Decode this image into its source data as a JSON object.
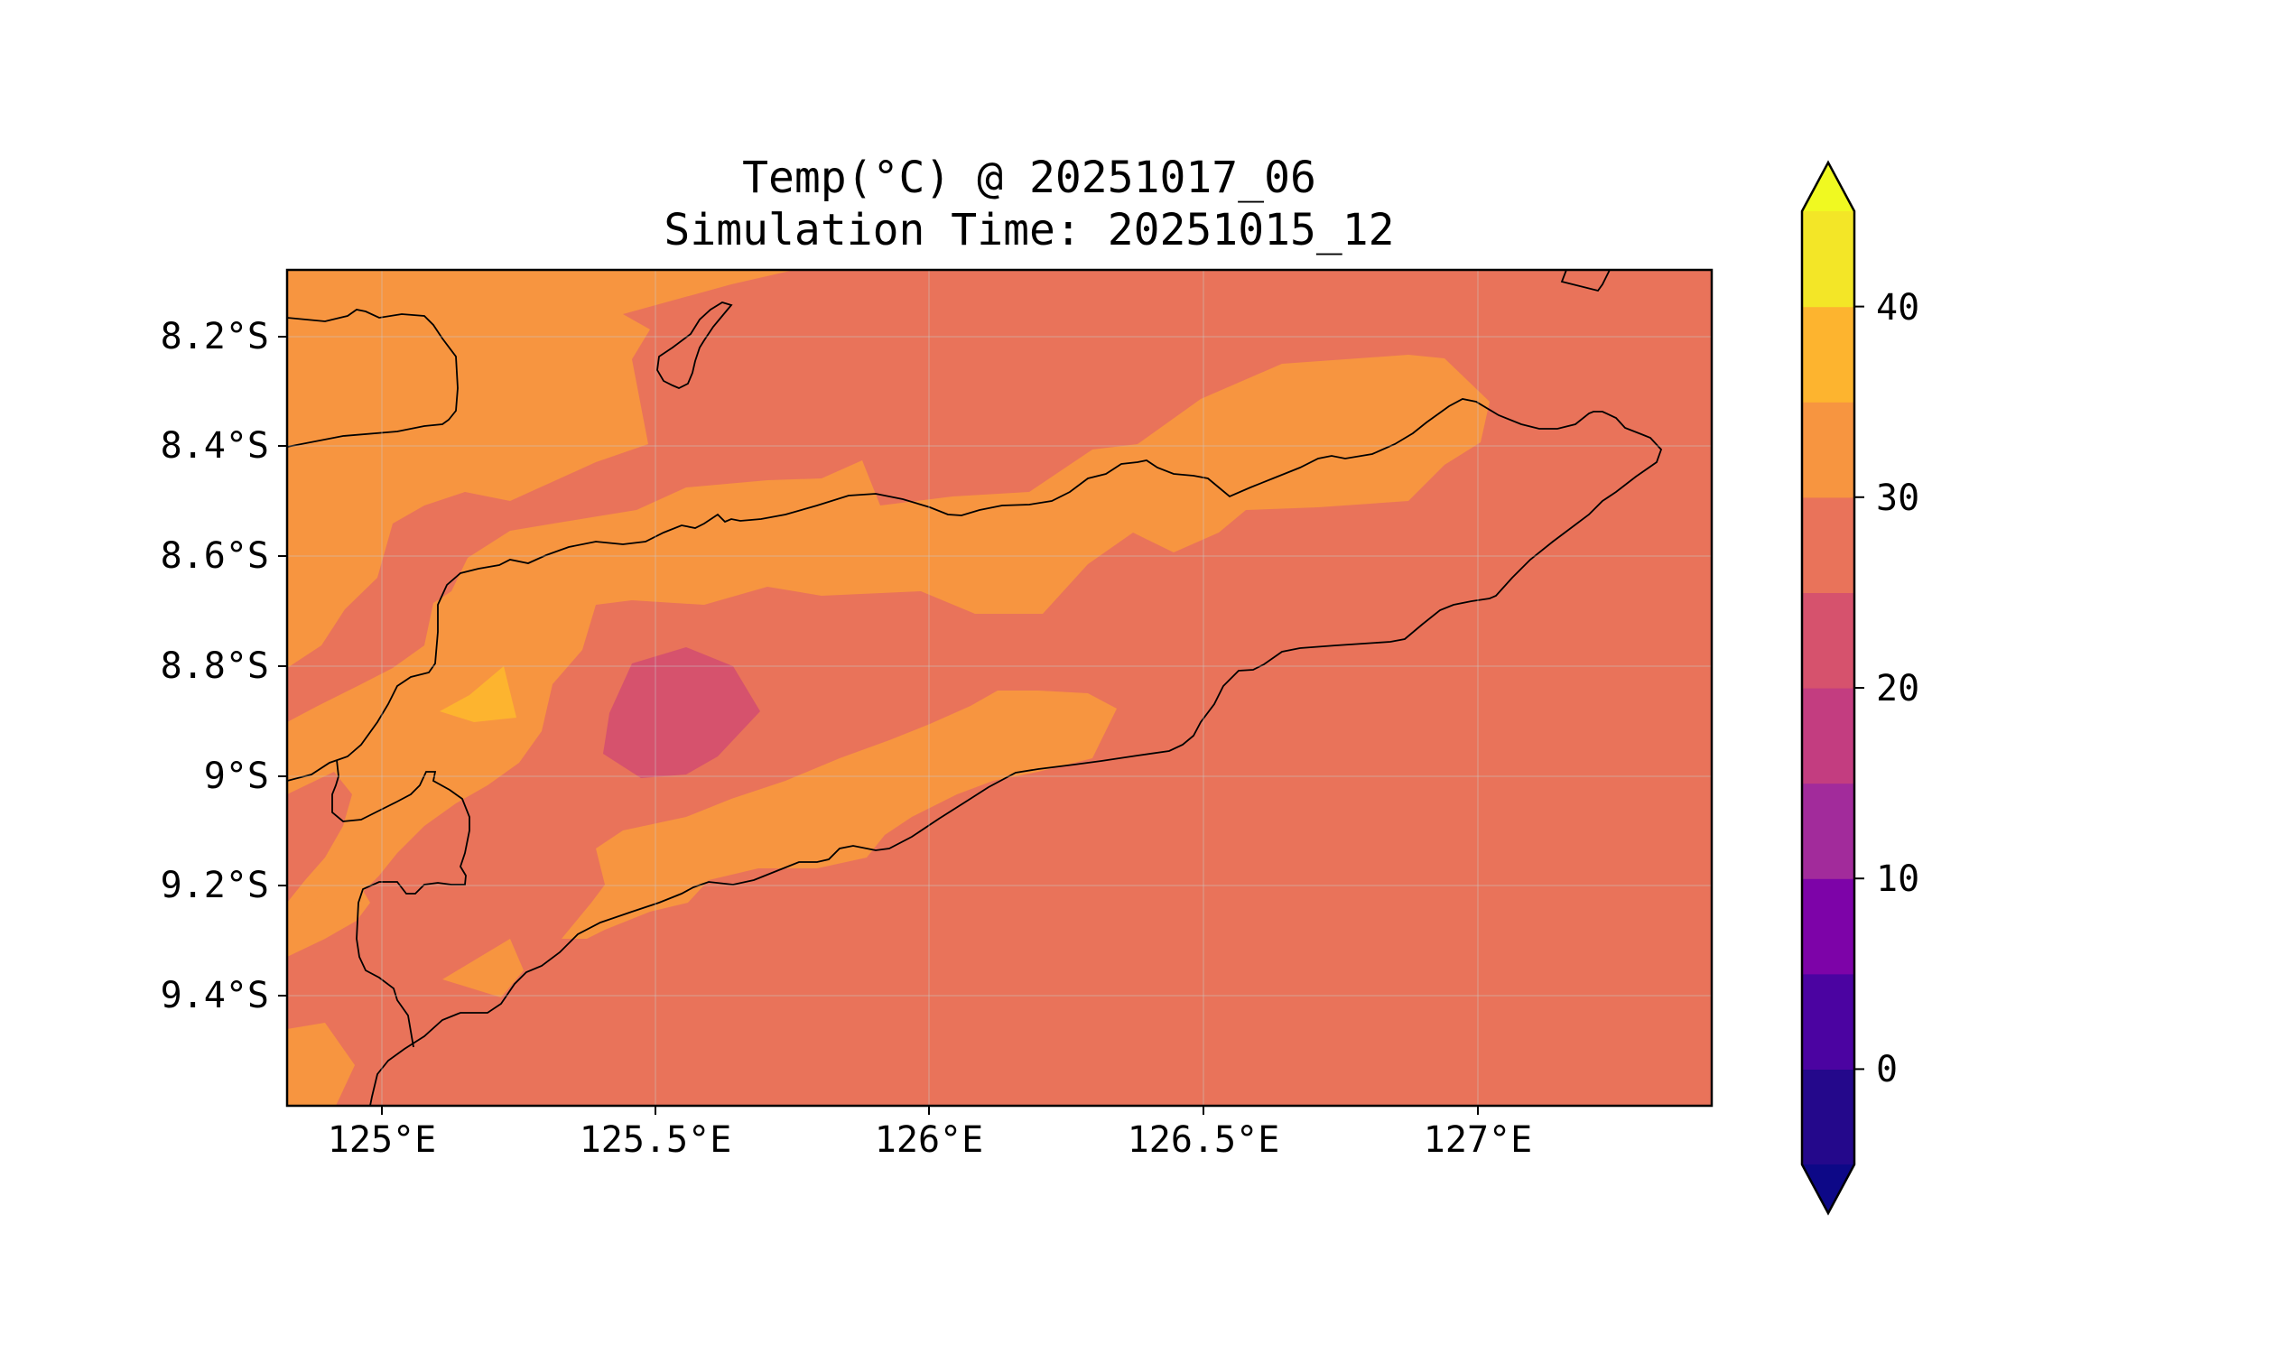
{
  "title_line1": "Temp(°C) @ 20251017_06",
  "title_line2": "Simulation Time: 20251015_12",
  "colors": {
    "band_20_25": "#d6526d",
    "band_25_30": "#e9735a",
    "band_30_35": "#f79540",
    "band_35_40": "#fdb42f",
    "coastline": "#000000",
    "frame": "#000000"
  },
  "lat_labels": [
    "8.2°S",
    "8.4°S",
    "8.6°S",
    "8.8°S",
    "9°S",
    "9.2°S",
    "9.4°S"
  ],
  "lon_labels": [
    "125°E",
    "125.5°E",
    "126°E",
    "126.5°E",
    "127°E"
  ],
  "colorbar": {
    "tick_labels": [
      "0",
      "10",
      "20",
      "30",
      "40"
    ],
    "levels": [
      -5,
      0,
      5,
      10,
      15,
      20,
      25,
      30,
      35,
      40,
      45
    ],
    "colors": [
      "#24088b",
      "#4b03a1",
      "#7d03a8",
      "#a22b9b",
      "#c33d80",
      "#d6526d",
      "#e9735a",
      "#f79540",
      "#fdb42f",
      "#f3e627"
    ],
    "under_color": "#0d0887",
    "over_color": "#f0f921",
    "extend": "both"
  },
  "chart_data": {
    "type": "contour",
    "variable": "Temp(°C)",
    "valid_time": "20251017_06",
    "simulation_time": "20251015_12",
    "lon_range": [
      124.83,
      127.43
    ],
    "lat_range": [
      -9.61,
      -8.09
    ],
    "contour_levels": [
      -5,
      0,
      5,
      10,
      15,
      20,
      25,
      30,
      35,
      40,
      45
    ],
    "dominant_band_C": [
      25,
      30
    ],
    "warm_band_C": [
      30,
      35
    ],
    "hot_spot_C": [
      35,
      40
    ],
    "cool_spot_C": [
      20,
      25
    ]
  }
}
